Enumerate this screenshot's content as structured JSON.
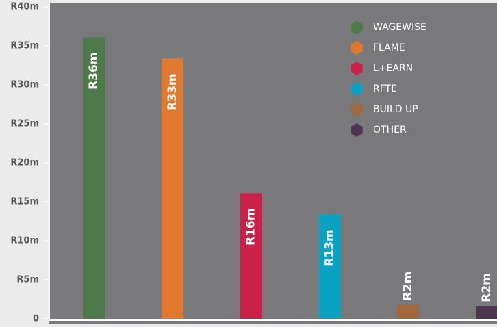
{
  "chart_data": {
    "type": "bar",
    "categories": [
      "WAGEWISE",
      "FLAME",
      "L+EARN",
      "RFTE",
      "BUILD UP",
      "OTHER"
    ],
    "values": [
      36.1,
      33.4,
      16.1,
      13.4,
      1.8,
      1.6
    ],
    "value_labels": [
      "R36m",
      "R33m",
      "R16m",
      "R13m",
      "R2m",
      "R2m"
    ],
    "colors": [
      "#4e7a4b",
      "#e0782f",
      "#cb2149",
      "#0aa2c3",
      "#9f683e",
      "#4e3552"
    ],
    "ylim": [
      0,
      40
    ],
    "yticks": [
      {
        "value": 0,
        "label": "0"
      },
      {
        "value": 5,
        "label": "R5m"
      },
      {
        "value": 10,
        "label": "R10m"
      },
      {
        "value": 15,
        "label": "R15m"
      },
      {
        "value": 20,
        "label": "R20m"
      },
      {
        "value": 25,
        "label": "R25m"
      },
      {
        "value": 30,
        "label": "R30m"
      },
      {
        "value": 35,
        "label": "R35m"
      },
      {
        "value": 40,
        "label": "R40m"
      }
    ],
    "legend": "top-right"
  }
}
